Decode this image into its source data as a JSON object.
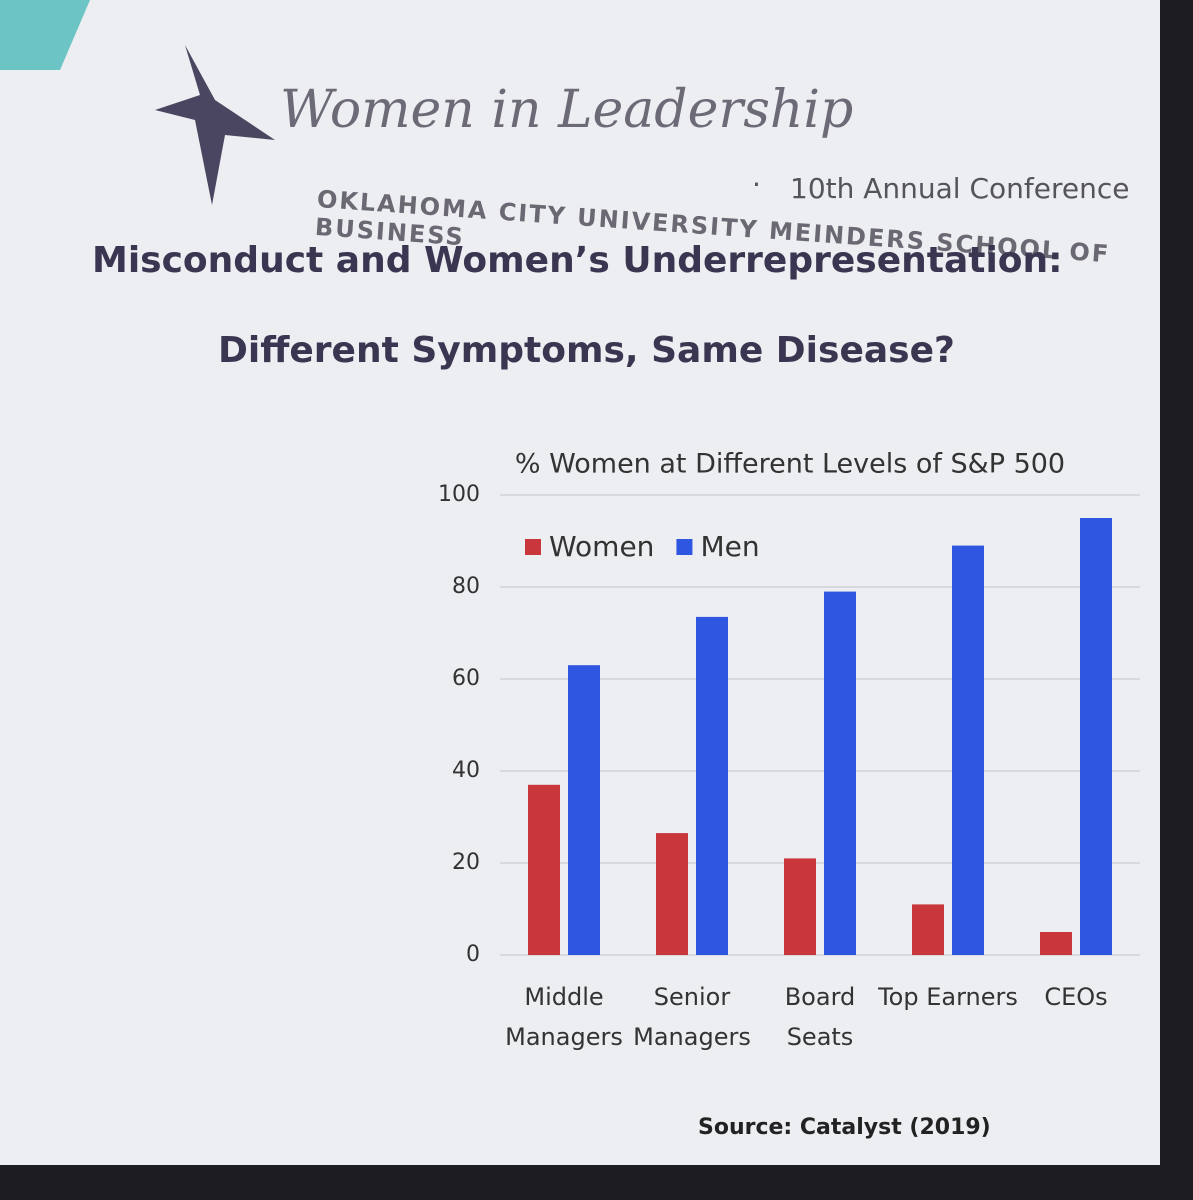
{
  "header": {
    "brand": "Women in Leadership",
    "conference": "10th Annual Conference",
    "school": "OKLAHOMA CITY UNIVERSITY MEINDERS SCHOOL OF BUSINESS"
  },
  "slide_title": [
    "Misconduct and Women’s Underrepresentation:",
    "Different Symptoms, Same Disease?"
  ],
  "chart_data": {
    "type": "bar",
    "title": "% Women at Different Levels of S&P 500",
    "categories": [
      "Middle Managers",
      "Senior Managers",
      "Board Seats",
      "Top Earners",
      "CEOs"
    ],
    "series": [
      {
        "name": "Women",
        "color": "#c9373c",
        "values": [
          37,
          26.5,
          21,
          11,
          5
        ]
      },
      {
        "name": "Men",
        "color": "#2f56e0",
        "values": [
          63,
          73.5,
          79,
          89,
          95
        ]
      }
    ],
    "ylim": [
      0,
      100
    ],
    "yticks": [
      0,
      20,
      40,
      60,
      80,
      100
    ],
    "grid": true,
    "legend": "top-left",
    "source": "Source: Catalyst (2019)"
  }
}
